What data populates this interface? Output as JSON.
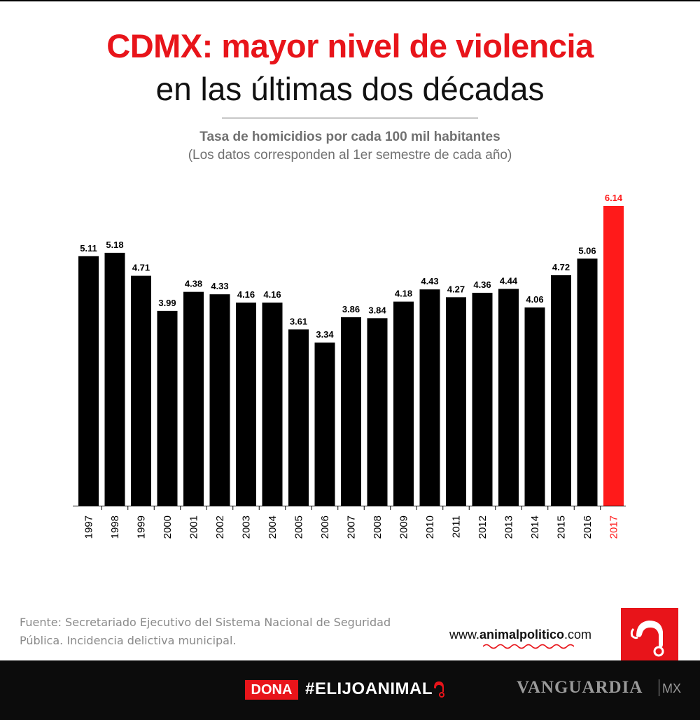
{
  "header": {
    "title_line1": "CDMX: mayor nivel de violencia",
    "title_line2": "en las últimas dos décadas",
    "subtitle": "Tasa de homicidios por cada 100 mil habitantes",
    "subtitle_note": "(Los datos corresponden al 1er semestre de cada año)"
  },
  "chart_data": {
    "type": "bar",
    "title": "Tasa de homicidios por cada 100 mil habitantes",
    "categories": [
      "1997",
      "1998",
      "1999",
      "2000",
      "2001",
      "2002",
      "2003",
      "2004",
      "2005",
      "2006",
      "2007",
      "2008",
      "2009",
      "2010",
      "2011",
      "2012",
      "2013",
      "2014",
      "2015",
      "2016",
      "2017"
    ],
    "values": [
      5.11,
      5.18,
      4.71,
      3.99,
      4.38,
      4.33,
      4.16,
      4.16,
      3.61,
      3.34,
      3.86,
      3.84,
      4.18,
      4.43,
      4.27,
      4.36,
      4.44,
      4.06,
      4.72,
      5.06,
      6.14
    ],
    "value_labels": [
      "5.11",
      "5.18",
      "4.71",
      "3.99",
      "4.38",
      "4.33",
      "4.16",
      "4.16",
      "3.61",
      "3.34",
      "3.86",
      "3.84",
      "4.18",
      "4.43",
      "4.27",
      "4.36",
      "4.44",
      "4.06",
      "4.72",
      "5.06",
      "6.14"
    ],
    "highlight_index": 20,
    "colors": {
      "bar": "#000000",
      "highlight": "#ff1a1a"
    },
    "ylim": [
      0,
      6.14
    ],
    "grid": false,
    "xlabel": "",
    "ylabel": ""
  },
  "footer": {
    "source": "Fuente: Secretariado Ejecutivo del Sistema Nacional de Seguridad Pública. Incidencia delictiva municipal.",
    "site_prefix": "www.",
    "site_name": "animalpolitico",
    "site_suffix": ".com",
    "dona_label": "DONA",
    "hashtag": "#ELIJOANIMAL",
    "brand": "VANGUARDIA",
    "brand_suffix": "MX"
  },
  "colors": {
    "accent": "#e8141a",
    "footer_bg": "#0c0c0c",
    "gray_text": "#8a8a8a"
  },
  "icons": {
    "logo": "animal-politico-logo-icon",
    "hashtag": "animal-head-icon"
  }
}
